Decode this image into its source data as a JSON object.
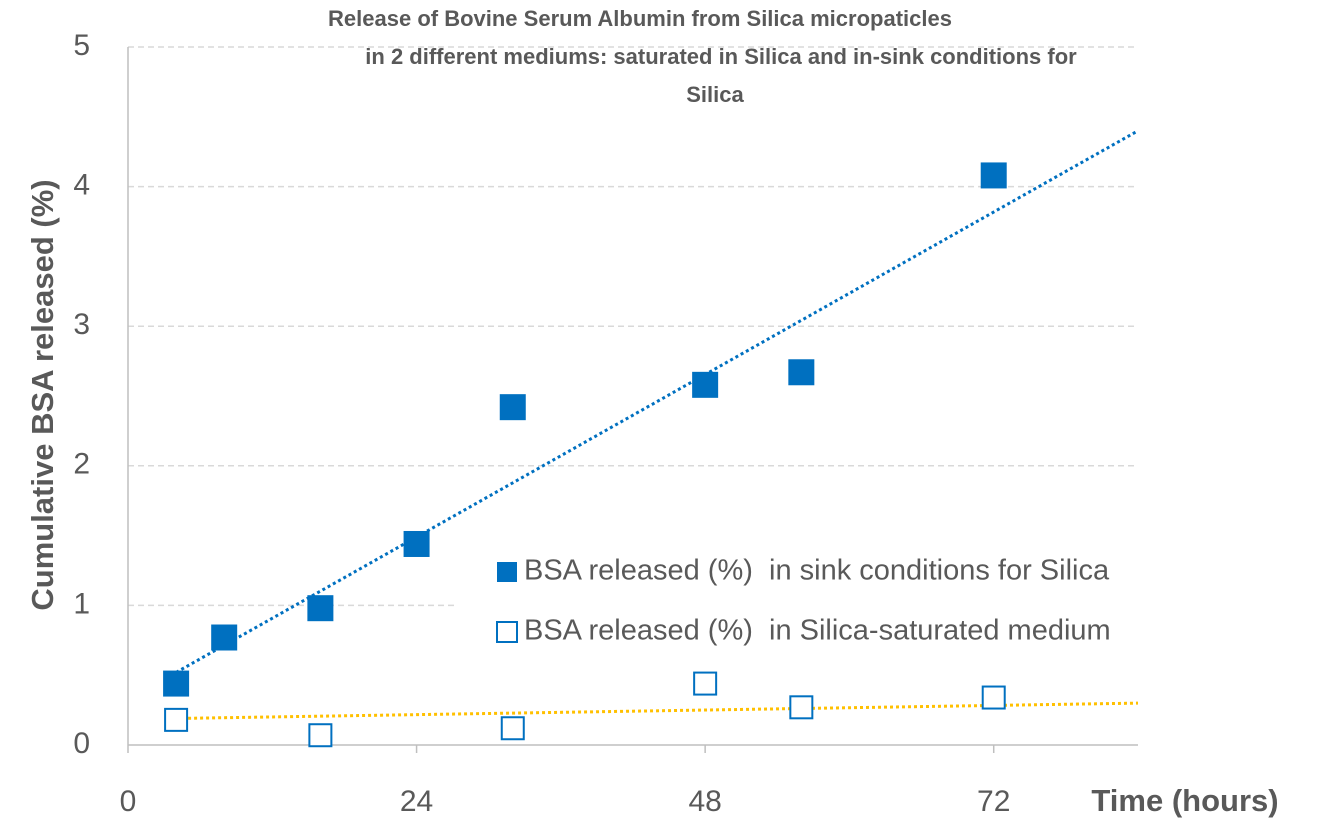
{
  "chart_data": {
    "type": "scatter",
    "title": [
      "Release of Bovine Serum Albumin from Silica micropaticles",
      "in 2 different mediums: saturated in Silica and in-sink conditions for",
      "Silica"
    ],
    "x_label": "Time (hours)",
    "y_label": "Cumulative  BSA released (%)",
    "xlim": [
      0,
      84
    ],
    "ylim": [
      0,
      5
    ],
    "xticks": [
      0,
      24,
      48,
      72
    ],
    "yticks": [
      0,
      1,
      2,
      3,
      4,
      5
    ],
    "grid": true,
    "legend": "right",
    "series": [
      {
        "name": "BSA released (%)  in sink conditions for Silica",
        "color": "#0070c0",
        "marker": "filled",
        "x": [
          4,
          8,
          16,
          24,
          32,
          48,
          56,
          72
        ],
        "values": [
          0.44,
          0.77,
          0.98,
          1.44,
          2.42,
          2.58,
          2.67,
          4.08
        ],
        "trendline": {
          "color": "#0070c0",
          "x": [
            4,
            84
          ],
          "values": [
            0.52,
            4.4
          ]
        }
      },
      {
        "name": "BSA released (%)  in Silica-saturated medium",
        "color": "#0070c0",
        "marker": "open",
        "x": [
          4,
          16,
          32,
          48,
          56,
          72
        ],
        "values": [
          0.18,
          0.07,
          0.12,
          0.44,
          0.27,
          0.34
        ],
        "trendline": {
          "color": "#ffc000",
          "x": [
            4,
            84
          ],
          "values": [
            0.19,
            0.3
          ]
        }
      }
    ]
  }
}
